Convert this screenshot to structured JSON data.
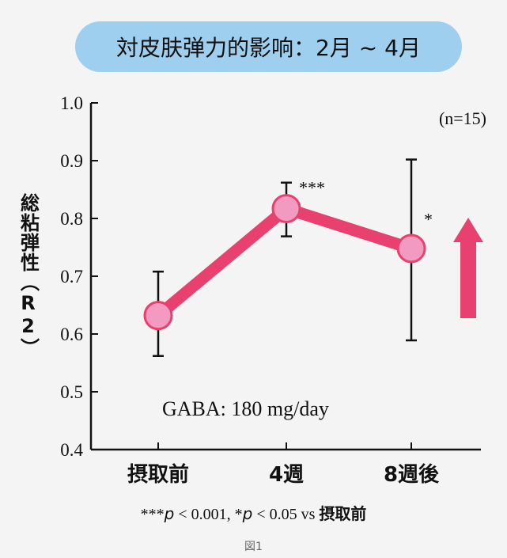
{
  "title": "対皮肤弹力的影响：2月 ~ 4月",
  "ylabel": "総粘弾性（R2）",
  "n_label": "(n=15)",
  "annotation": "GABA: 180 mg/day",
  "footnote": {
    "part1_stars": "***",
    "part1_p": "p",
    "part1_rest": " < 0.001, *",
    "part2_p": "p",
    "part2_rest": " < 0.05 vs ",
    "part2_jp": "摂取前"
  },
  "caption": "図1",
  "colors": {
    "line": "#e8406f",
    "marker": "#f29ac0",
    "arrow": "#e8406f",
    "title_bg": "#9fcfee"
  },
  "chart_data": {
    "type": "line",
    "categories": [
      "摂取前",
      "4週",
      "8週後"
    ],
    "values": [
      0.632,
      0.817,
      0.748
    ],
    "error_low": [
      0.562,
      0.769,
      0.589
    ],
    "error_high": [
      0.708,
      0.862,
      0.902
    ],
    "significance": [
      "",
      "***",
      "*"
    ],
    "ylim": [
      0.4,
      1.0
    ],
    "yticks": [
      "0.4",
      "0.5",
      "0.6",
      "0.7",
      "0.8",
      "0.9",
      "1.0"
    ],
    "grid": false,
    "trend_arrow": "up"
  }
}
